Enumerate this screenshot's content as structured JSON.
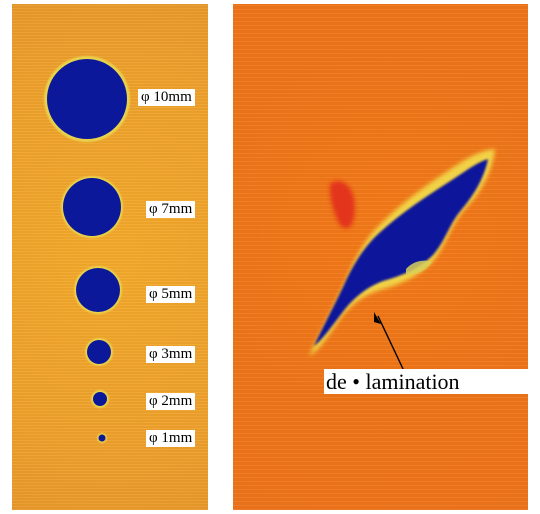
{
  "left_panel": {
    "labels": [
      {
        "id": "10mm",
        "text": "φ 10mm"
      },
      {
        "id": "7mm",
        "text": "φ 7mm"
      },
      {
        "id": "5mm",
        "text": "φ 5mm"
      },
      {
        "id": "3mm",
        "text": "φ 3mm"
      },
      {
        "id": "2mm",
        "text": "φ 2mm"
      },
      {
        "id": "1mm",
        "text": "φ 1mm"
      }
    ]
  },
  "right_panel": {
    "defect_label": "de • lamination"
  },
  "colors": {
    "background_orange": "#f07619",
    "background_amber": "#efa22c",
    "defect_blue": "#0b189a",
    "halo_yellow": "#f2d84a",
    "spot_red": "#e3301f"
  }
}
